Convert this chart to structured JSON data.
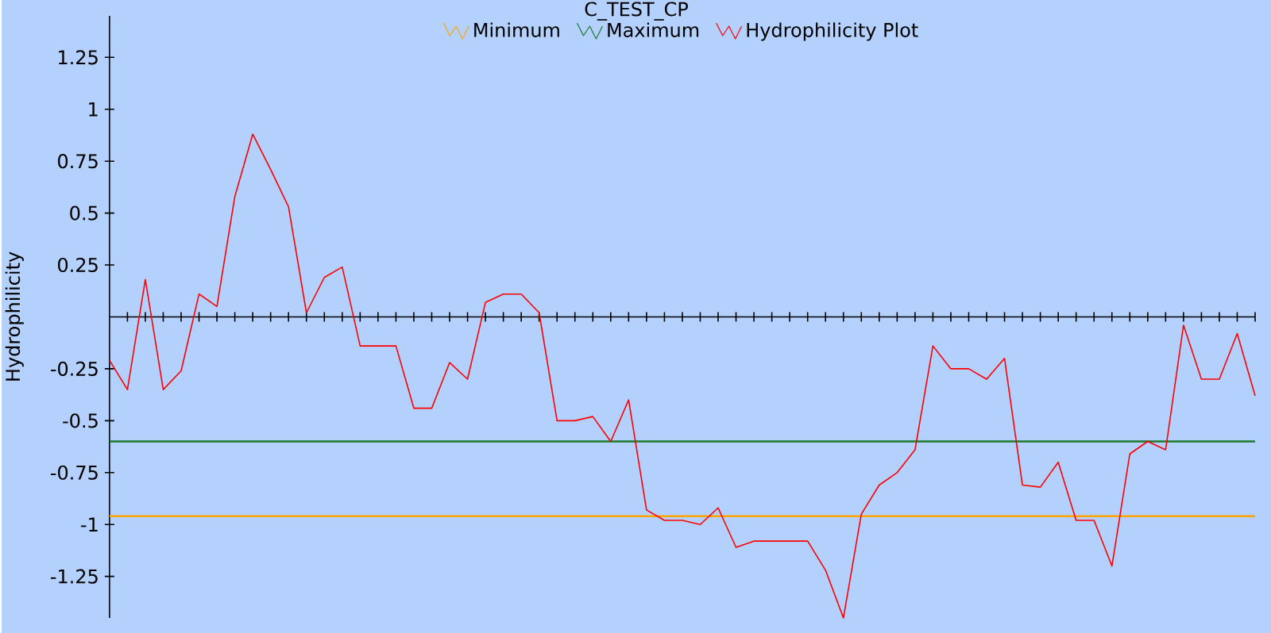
{
  "chart_data": {
    "type": "line",
    "title": "C_TEST_CP",
    "ylabel": "Hydrophilicity",
    "categories": [
      null,
      null,
      null,
      null,
      null,
      null,
      null,
      null,
      null,
      null,
      null,
      null,
      null,
      null,
      null,
      null,
      null,
      null,
      null,
      null,
      null,
      null,
      null,
      null,
      null,
      null,
      null,
      null,
      null,
      null,
      null,
      null,
      null,
      null,
      null,
      null,
      null,
      null,
      null,
      null,
      null,
      null,
      null,
      null,
      null,
      null,
      null,
      null,
      null,
      null,
      null,
      null,
      null,
      null,
      null,
      null,
      null,
      null,
      null,
      null,
      null,
      null,
      null,
      null,
      null
    ],
    "series": [
      {
        "name": "Minimum",
        "color": "#ffa500",
        "values": [
          -0.96,
          -0.96,
          -0.96,
          -0.96,
          -0.96,
          -0.96,
          -0.96,
          -0.96,
          -0.96,
          -0.96,
          -0.96,
          -0.96,
          -0.96,
          -0.96,
          -0.96,
          -0.96,
          -0.96,
          -0.96,
          -0.96,
          -0.96,
          -0.96,
          -0.96,
          -0.96,
          -0.96,
          -0.96,
          -0.96,
          -0.96,
          -0.96,
          -0.96,
          -0.96,
          -0.96,
          -0.96,
          -0.96,
          -0.96,
          -0.96,
          -0.96,
          -0.96,
          -0.96,
          -0.96,
          -0.96,
          -0.96,
          -0.96,
          -0.96,
          -0.96,
          -0.96,
          -0.96,
          -0.96,
          -0.96,
          -0.96,
          -0.96,
          -0.96,
          -0.96,
          -0.96,
          -0.96,
          -0.96,
          -0.96,
          -0.96,
          -0.96,
          -0.96,
          -0.96,
          -0.96,
          -0.96,
          -0.96,
          -0.96,
          -0.96
        ]
      },
      {
        "name": "Maximum",
        "color": "#1a7a2a",
        "values": [
          -0.6,
          -0.6,
          -0.6,
          -0.6,
          -0.6,
          -0.6,
          -0.6,
          -0.6,
          -0.6,
          -0.6,
          -0.6,
          -0.6,
          -0.6,
          -0.6,
          -0.6,
          -0.6,
          -0.6,
          -0.6,
          -0.6,
          -0.6,
          -0.6,
          -0.6,
          -0.6,
          -0.6,
          -0.6,
          -0.6,
          -0.6,
          -0.6,
          -0.6,
          -0.6,
          -0.6,
          -0.6,
          -0.6,
          -0.6,
          -0.6,
          -0.6,
          -0.6,
          -0.6,
          -0.6,
          -0.6,
          -0.6,
          -0.6,
          -0.6,
          -0.6,
          -0.6,
          -0.6,
          -0.6,
          -0.6,
          -0.6,
          -0.6,
          -0.6,
          -0.6,
          -0.6,
          -0.6,
          -0.6,
          -0.6,
          -0.6,
          -0.6,
          -0.6,
          -0.6,
          -0.6,
          -0.6,
          -0.6,
          -0.6,
          -0.6
        ]
      },
      {
        "name": "Hydrophilicity Plot",
        "color": "#ff0000",
        "values": [
          -0.21,
          -0.35,
          0.18,
          -0.35,
          -0.26,
          0.11,
          0.05,
          0.58,
          0.88,
          0.71,
          0.53,
          0.02,
          0.19,
          0.24,
          -0.14,
          -0.14,
          -0.14,
          -0.44,
          -0.44,
          -0.22,
          -0.3,
          0.07,
          0.11,
          0.11,
          0.02,
          -0.5,
          -0.5,
          -0.48,
          -0.6,
          -0.4,
          -0.93,
          -0.98,
          -0.98,
          -1.0,
          -0.92,
          -1.11,
          -1.08,
          -1.08,
          -1.08,
          -1.08,
          -1.22,
          -1.45,
          -0.95,
          -0.81,
          -0.75,
          -0.64,
          -0.14,
          -0.25,
          -0.25,
          -0.3,
          -0.2,
          -0.81,
          -0.82,
          -0.7,
          -0.98,
          -0.98,
          -1.2,
          -0.66,
          -0.6,
          -0.64,
          -0.04,
          -0.3,
          -0.3,
          -0.08,
          -0.38
        ]
      }
    ],
    "ylim": [
      -1.45,
      1.45
    ],
    "yticks": [
      -1.25,
      -1,
      -0.75,
      -0.5,
      -0.25,
      0.25,
      0.5,
      0.75,
      1,
      1.25
    ],
    "legend": "top",
    "tick_labels": "y"
  }
}
